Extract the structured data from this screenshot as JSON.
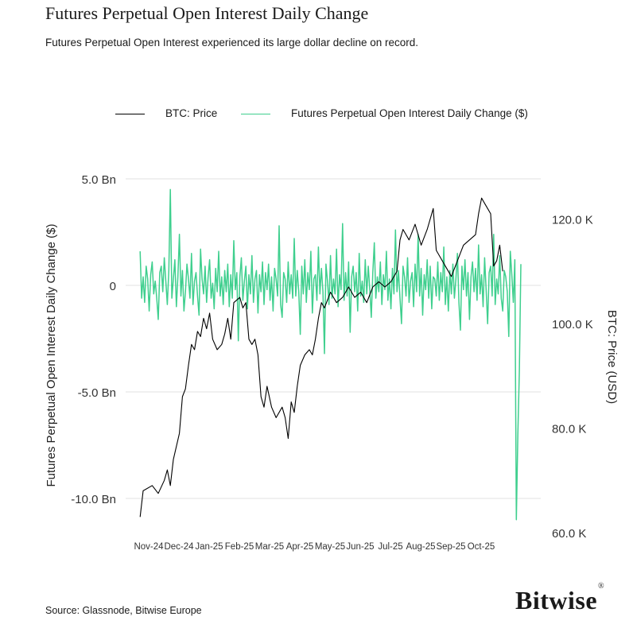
{
  "header": {
    "title": "Futures Perpetual Open Interest Daily Change",
    "subtitle": "Futures Perpetual Open Interest experienced its large dollar decline on record."
  },
  "legend": [
    {
      "label": "BTC: Price",
      "color": "#000000"
    },
    {
      "label": "Futures Perpetual Open Interest Daily Change ($)",
      "color": "#3fcf8e"
    }
  ],
  "footer": {
    "source": "Source: Glassnode, Bitwise Europe",
    "logo": "Bitwise",
    "logo_mark": "®"
  },
  "chart_data": {
    "type": "line",
    "title": "Futures Perpetual Open Interest Daily Change",
    "x_tick_labels": [
      "Nov-24",
      "Dec-24",
      "Jan-25",
      "Feb-25",
      "Mar-25",
      "Apr-25",
      "May-25",
      "Jun-25",
      "Jul-25",
      "Aug-25",
      "Sep-25",
      "Oct-25"
    ],
    "y_left": {
      "label": "Futures Perpetual Open Interest Daily Change ($)",
      "range": [
        -11.2,
        5.2
      ],
      "ticks": [
        5.0,
        0,
        -5.0,
        -10.0
      ],
      "tick_labels": [
        "5.0 Bn",
        "0",
        "-5.0 Bn",
        "-10.0 Bn"
      ]
    },
    "y_right": {
      "label": "BTC: Price (USD)",
      "range": [
        60000,
        127000
      ],
      "ticks": [
        120000,
        100000,
        80000,
        60000
      ],
      "tick_labels": [
        "120.0 K",
        "100.0 K",
        "80.0 K",
        "60.0 K"
      ]
    },
    "grid": true,
    "legend_position": "top",
    "series": [
      {
        "name": "BTC: Price",
        "axis": "right",
        "color": "#000000",
        "x_month_index": [
          -0.1,
          0.0,
          0.3,
          0.5,
          0.7,
          0.8,
          0.9,
          1.0,
          1.2,
          1.3,
          1.4,
          1.5,
          1.6,
          1.7,
          1.8,
          1.9,
          2.0,
          2.1,
          2.2,
          2.3,
          2.45,
          2.6,
          2.7,
          2.8,
          2.9,
          3.0,
          3.2,
          3.3,
          3.4,
          3.5,
          3.6,
          3.7,
          3.8,
          3.9,
          4.0,
          4.1,
          4.25,
          4.4,
          4.6,
          4.7,
          4.8,
          4.9,
          5.0,
          5.1,
          5.2,
          5.35,
          5.5,
          5.6,
          5.7,
          5.8,
          5.9,
          6.0,
          6.2,
          6.4,
          6.6,
          6.8,
          7.0,
          7.2,
          7.4,
          7.6,
          7.8,
          8.0,
          8.2,
          8.4,
          8.5,
          8.6,
          8.8,
          9.0,
          9.2,
          9.4,
          9.6,
          9.7,
          9.8,
          9.9,
          10.0,
          10.2,
          10.4,
          10.6,
          10.8,
          11.0,
          11.1,
          11.2,
          11.3,
          11.4,
          11.5,
          11.6,
          11.7,
          11.8,
          11.9
        ],
        "values": [
          63000,
          68000,
          69000,
          67500,
          70000,
          72000,
          69000,
          74000,
          79000,
          86000,
          87500,
          92000,
          96000,
          95000,
          98500,
          97500,
          101000,
          99000,
          102000,
          97000,
          95000,
          96000,
          98000,
          101000,
          97000,
          104000,
          105000,
          103000,
          104000,
          97000,
          96000,
          97000,
          94000,
          86000,
          84000,
          88000,
          84000,
          82000,
          84000,
          82000,
          78000,
          85000,
          83000,
          88000,
          92000,
          94000,
          95000,
          94000,
          97000,
          101000,
          104000,
          103000,
          106000,
          104000,
          105000,
          107000,
          105000,
          106000,
          104000,
          107000,
          108000,
          107000,
          108000,
          110000,
          116000,
          118000,
          116000,
          119000,
          115000,
          118000,
          122000,
          114000,
          113000,
          112000,
          111000,
          109000,
          112000,
          115000,
          116000,
          117000,
          121000,
          124000,
          123000,
          122000,
          121000,
          111000,
          112000,
          115000,
          110000
        ],
        "note": "Bitcoin price in USD, approximate daily path"
      },
      {
        "name": "Futures Perpetual Open Interest Daily Change ($)",
        "axis": "left",
        "color": "#3fcf8e",
        "day_step_months": 0.05,
        "start_month_index": -0.1,
        "values": [
          1.6,
          -0.6,
          0.4,
          -0.8,
          0.9,
          0.3,
          -1.2,
          0.5,
          1.1,
          -0.4,
          0.2,
          -0.6,
          -1.6,
          0.6,
          0.9,
          -0.3,
          1.3,
          0.2,
          -0.9,
          0.7,
          4.5,
          -0.6,
          0.3,
          1.2,
          -1.0,
          0.4,
          2.4,
          -0.5,
          0.7,
          -1.2,
          -0.3,
          1.0,
          0.3,
          -0.6,
          1.5,
          -0.9,
          0.2,
          0.6,
          -0.5,
          -1.4,
          1.7,
          0.3,
          -0.4,
          0.9,
          -0.8,
          0.4,
          1.2,
          -0.6,
          0.1,
          -1.1,
          0.8,
          -0.3,
          1.6,
          -0.5,
          0.4,
          -0.9,
          0.7,
          -0.3,
          1.0,
          -1.0,
          0.5,
          -0.6,
          2.1,
          -0.2,
          0.6,
          -2.6,
          0.4,
          1.3,
          -0.7,
          0.2,
          0.9,
          -1.1,
          0.5,
          -0.4,
          1.4,
          -0.8,
          0.3,
          0.7,
          -1.3,
          0.5,
          -0.3,
          1.1,
          -0.9,
          0.6,
          -0.2,
          1.0,
          -0.7,
          0.4,
          -1.2,
          0.8,
          0.3,
          -0.5,
          2.8,
          -0.9,
          -1.5,
          0.6,
          0.3,
          -0.8,
          1.1,
          -0.4,
          0.5,
          -0.6,
          2.2,
          -0.5,
          0.7,
          -0.3,
          -2.3,
          0.9,
          -0.4,
          1.2,
          -0.8,
          0.6,
          -0.2,
          1.6,
          -1.3,
          0.3,
          0.5,
          -0.7,
          1.8,
          -0.4,
          0.8,
          -0.3,
          -3.2,
          1.0,
          0.2,
          -0.9,
          1.4,
          -0.6,
          0.3,
          -0.4,
          1.7,
          -1.0,
          0.5,
          -0.2,
          2.9,
          -0.7,
          0.6,
          -0.5,
          1.1,
          -2.2,
          0.4,
          0.9,
          -0.3,
          0.6,
          -1.2,
          1.5,
          -0.5,
          0.2,
          -0.8,
          1.2,
          -0.4,
          0.9,
          -0.2,
          -1.5,
          0.6,
          2.0,
          -0.6,
          0.4,
          -0.3,
          1.1,
          -0.9,
          0.5,
          -0.2,
          1.6,
          -0.7,
          0.3,
          -1.1,
          0.8,
          -0.4,
          2.6,
          -0.3,
          0.7,
          -0.6,
          -1.8,
          0.9,
          0.4,
          -0.5,
          1.3,
          -0.8,
          0.2,
          0.6,
          -1.0,
          1.0,
          -0.3,
          2.4,
          -0.5,
          0.8,
          -1.4,
          0.5,
          -0.2,
          1.2,
          -0.6,
          0.9,
          -1.1,
          0.4,
          0.3,
          -0.5,
          1.1,
          -0.7,
          0.6,
          -0.3,
          1.8,
          -0.9,
          0.4,
          -1.2,
          0.7,
          -0.4,
          1.0,
          -0.6,
          0.3,
          1.5,
          -0.8,
          -2.1,
          0.9,
          -0.2,
          1.2,
          -0.5,
          0.6,
          -1.6,
          0.4,
          1.1,
          -0.3,
          0.8,
          -0.7,
          1.9,
          -0.4,
          0.5,
          -1.0,
          1.3,
          -0.2,
          -1.8,
          0.6,
          0.9,
          -0.5,
          2.4,
          -0.9,
          0.3,
          -0.4,
          1.4,
          -0.6,
          -1.2,
          0.7,
          0.4,
          -0.3,
          -2.4,
          1.6,
          0.5,
          -0.8,
          1.2,
          -11.0,
          -7.0,
          -4.0,
          1.0
        ]
      }
    ]
  }
}
